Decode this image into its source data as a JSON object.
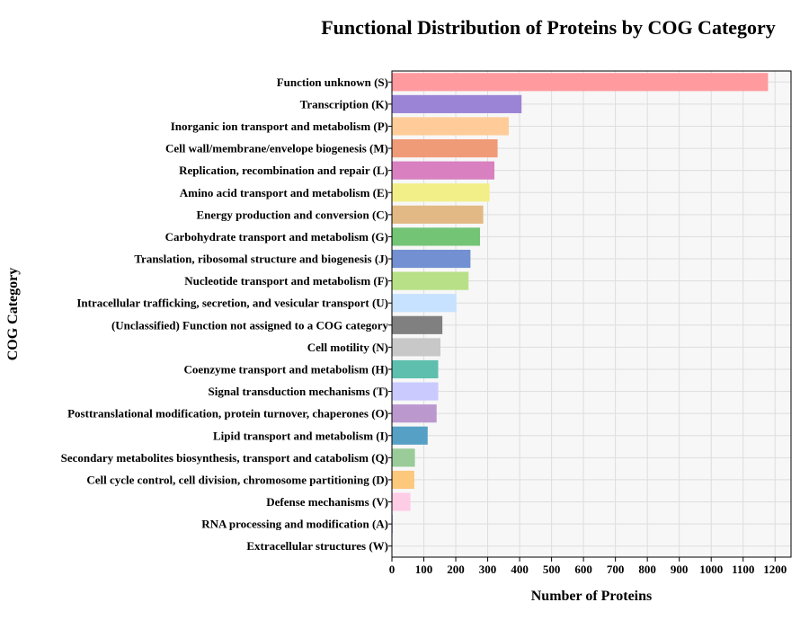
{
  "chart_data": {
    "type": "bar",
    "orientation": "horizontal",
    "title": "Functional Distribution of Proteins by COG Category",
    "xlabel": "Number of Proteins",
    "ylabel": "COG Category",
    "xlim": [
      0,
      1250
    ],
    "xticks": [
      0,
      100,
      200,
      300,
      400,
      500,
      600,
      700,
      800,
      900,
      1000,
      1100,
      1200
    ],
    "grid": true,
    "legend": "none",
    "categories": [
      "Function unknown (S)",
      "Transcription (K)",
      "Inorganic ion transport and metabolism (P)",
      "Cell wall/membrane/envelope biogenesis (M)",
      "Replication, recombination and repair (L)",
      "Amino acid transport and metabolism (E)",
      "Energy production and conversion (C)",
      "Carbohydrate transport and metabolism (G)",
      "Translation, ribosomal structure and biogenesis (J)",
      "Nucleotide transport and metabolism (F)",
      "Intracellular trafficking, secretion, and vesicular transport (U)",
      "(Unclassified) Function not assigned to a COG category",
      "Cell motility (N)",
      "Coenzyme transport and metabolism (H)",
      "Signal transduction mechanisms (T)",
      "Posttranslational modification, protein turnover, chaperones (O)",
      "Lipid transport and metabolism (I)",
      "Secondary metabolites biosynthesis, transport and catabolism (Q)",
      "Cell cycle control, cell division, chromosome partitioning (D)",
      "Defense mechanisms (V)",
      "RNA processing and modification (A)",
      "Extracellular structures (W)"
    ],
    "values": [
      1178,
      406,
      366,
      331,
      321,
      306,
      286,
      276,
      246,
      240,
      202,
      158,
      152,
      145,
      145,
      140,
      112,
      72,
      70,
      58,
      2,
      0
    ],
    "colors": [
      "#ff9a9e",
      "#9b84d6",
      "#ffcc99",
      "#f09b78",
      "#d880c0",
      "#f2ef88",
      "#e2b984",
      "#74c476",
      "#7290d2",
      "#b8e086",
      "#c6e2ff",
      "#808080",
      "#c8c8c8",
      "#5fbfae",
      "#cacaff",
      "#bb99cf",
      "#56a0c6",
      "#99cc99",
      "#fcc87c",
      "#ffcce6",
      "#9370db",
      "#cccccc"
    ]
  }
}
